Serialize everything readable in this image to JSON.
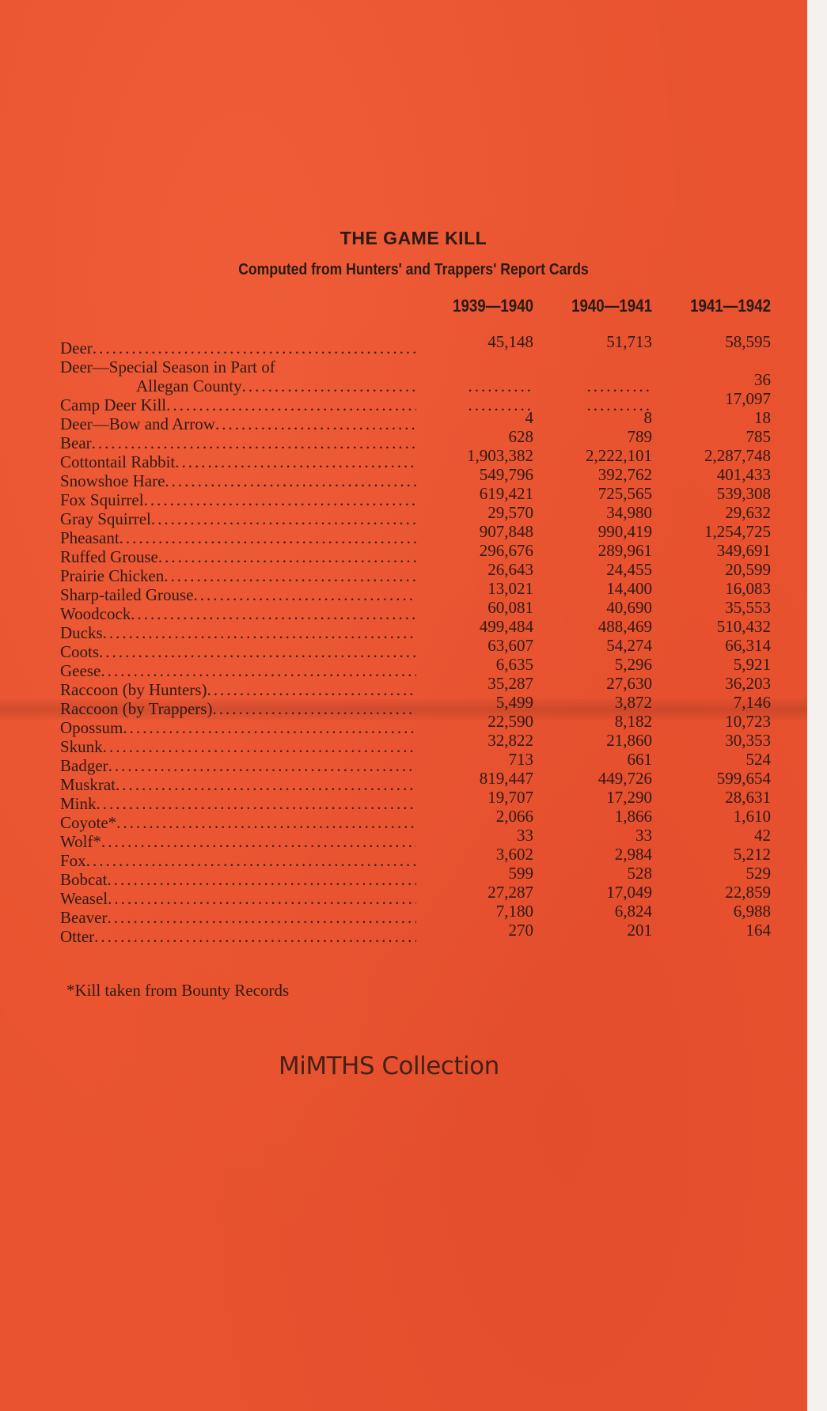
{
  "title": "THE GAME KILL",
  "subtitle": "Computed from Hunters' and Trappers' Report Cards",
  "columns": [
    "1939—1940",
    "1940—1941",
    "1941—1942"
  ],
  "rows": [
    {
      "label": "Deer",
      "values": [
        "45,148",
        "51,713",
        "58,595"
      ]
    },
    {
      "label": "Deer—Special Season in Part of",
      "values": [
        null,
        null,
        null
      ],
      "continued": true
    },
    {
      "label": "Allegan County",
      "values": [
        "..........",
        "..........",
        "36"
      ],
      "indent": true
    },
    {
      "label": "Camp Deer Kill",
      "values": [
        "..........",
        "..........",
        "17,097"
      ]
    },
    {
      "label": "Deer—Bow and Arrow",
      "values": [
        "4",
        "8",
        "18"
      ]
    },
    {
      "label": "Bear",
      "values": [
        "628",
        "789",
        "785"
      ]
    },
    {
      "label": "Cottontail Rabbit",
      "values": [
        "1,903,382",
        "2,222,101",
        "2,287,748"
      ]
    },
    {
      "label": "Snowshoe Hare",
      "values": [
        "549,796",
        "392,762",
        "401,433"
      ]
    },
    {
      "label": "Fox Squirrel",
      "values": [
        "619,421",
        "725,565",
        "539,308"
      ]
    },
    {
      "label": "Gray Squirrel",
      "values": [
        "29,570",
        "34,980",
        "29,632"
      ]
    },
    {
      "label": "Pheasant",
      "values": [
        "907,848",
        "990,419",
        "1,254,725"
      ]
    },
    {
      "label": "Ruffed Grouse",
      "values": [
        "296,676",
        "289,961",
        "349,691"
      ]
    },
    {
      "label": "Prairie Chicken",
      "values": [
        "26,643",
        "24,455",
        "20,599"
      ]
    },
    {
      "label": "Sharp-tailed Grouse",
      "values": [
        "13,021",
        "14,400",
        "16,083"
      ]
    },
    {
      "label": "Woodcock",
      "values": [
        "60,081",
        "40,690",
        "35,553"
      ]
    },
    {
      "label": "Ducks",
      "values": [
        "499,484",
        "488,469",
        "510,432"
      ]
    },
    {
      "label": "Coots",
      "values": [
        "63,607",
        "54,274",
        "66,314"
      ]
    },
    {
      "label": "Geese",
      "values": [
        "6,635",
        "5,296",
        "5,921"
      ]
    },
    {
      "label": "Raccoon (by Hunters)",
      "values": [
        "35,287",
        "27,630",
        "36,203"
      ]
    },
    {
      "label": "Raccoon (by Trappers)",
      "values": [
        "5,499",
        "3,872",
        "7,146"
      ]
    },
    {
      "label": "Opossum",
      "values": [
        "22,590",
        "8,182",
        "10,723"
      ]
    },
    {
      "label": "Skunk",
      "values": [
        "32,822",
        "21,860",
        "30,353"
      ]
    },
    {
      "label": "Badger",
      "values": [
        "713",
        "661",
        "524"
      ]
    },
    {
      "label": "Muskrat",
      "values": [
        "819,447",
        "449,726",
        "599,654"
      ]
    },
    {
      "label": "Mink",
      "values": [
        "19,707",
        "17,290",
        "28,631"
      ]
    },
    {
      "label": "Coyote*",
      "values": [
        "2,066",
        "1,866",
        "1,610"
      ]
    },
    {
      "label": "Wolf*",
      "values": [
        "33",
        "33",
        "42"
      ]
    },
    {
      "label": "Fox",
      "values": [
        "3,602",
        "2,984",
        "5,212"
      ]
    },
    {
      "label": "Bobcat",
      "values": [
        "599",
        "528",
        "529"
      ]
    },
    {
      "label": "Weasel",
      "values": [
        "27,287",
        "17,049",
        "22,859"
      ]
    },
    {
      "label": "Beaver",
      "values": [
        "7,180",
        "6,824",
        "6,988"
      ]
    },
    {
      "label": "Otter",
      "values": [
        "270",
        "201",
        "164"
      ]
    }
  ],
  "footnote": "*Kill taken from Bounty Records",
  "watermark": "MiMTHS Collection",
  "colors": {
    "paper": "#e9532f",
    "ink": "#2e1a16"
  }
}
